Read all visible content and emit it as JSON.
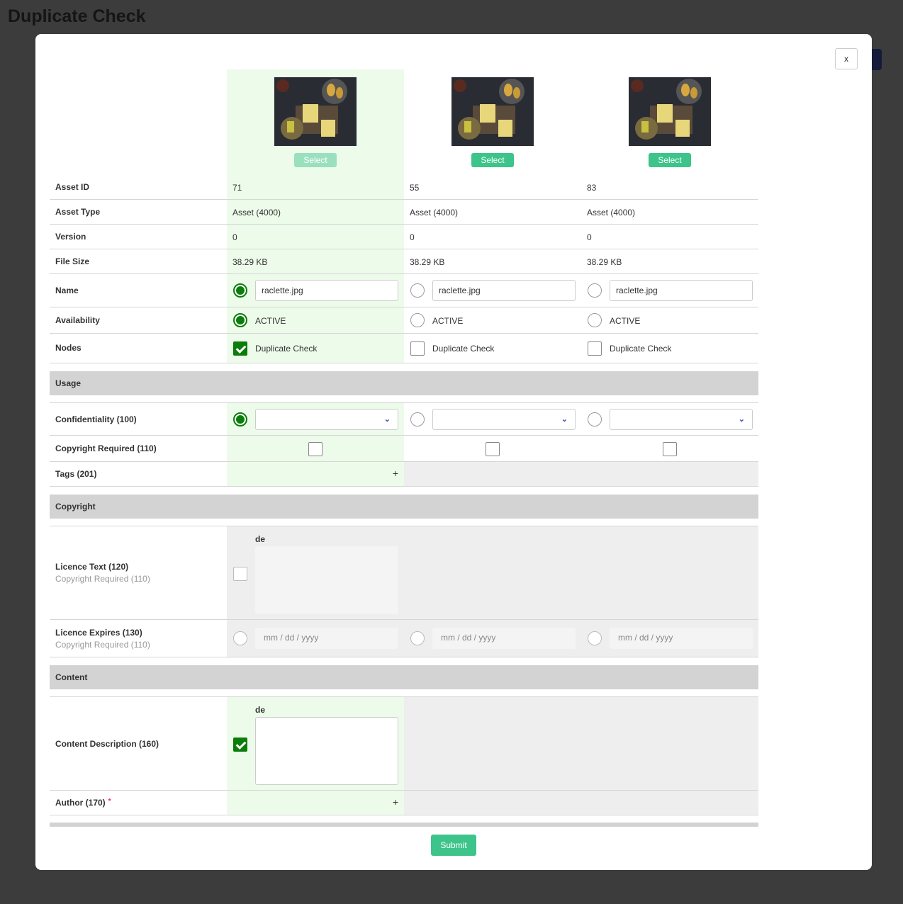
{
  "page": {
    "title": "Duplicate Check"
  },
  "modal": {
    "close_label": "x",
    "submit_label": "Submit"
  },
  "colors": {
    "accent": "#3cc48a",
    "selected_column": "#edfbea",
    "check_green": "#0a7d0a",
    "section_bg": "#d3d3d3"
  },
  "columns": [
    {
      "select_label": "Select",
      "selected": true,
      "image": "raclette-thumbnail",
      "asset_id": "71",
      "asset_type": "Asset (4000)",
      "version": "0",
      "file_size": "38.29 KB",
      "name": "raclette.jpg",
      "availability": "ACTIVE",
      "node": "Duplicate Check",
      "node_checked": true,
      "name_selected": true,
      "availability_selected": true,
      "confidentiality_selected": true
    },
    {
      "select_label": "Select",
      "selected": false,
      "image": "raclette-thumbnail",
      "asset_id": "55",
      "asset_type": "Asset (4000)",
      "version": "0",
      "file_size": "38.29 KB",
      "name": "raclette.jpg",
      "availability": "ACTIVE",
      "node": "Duplicate Check",
      "node_checked": false
    },
    {
      "select_label": "Select",
      "selected": false,
      "image": "raclette-thumbnail",
      "asset_id": "83",
      "asset_type": "Asset (4000)",
      "version": "0",
      "file_size": "38.29 KB",
      "name": "raclette.jpg",
      "availability": "ACTIVE",
      "node": "Duplicate Check",
      "node_checked": false
    }
  ],
  "labels": {
    "asset_id": "Asset ID",
    "asset_type": "Asset Type",
    "version": "Version",
    "file_size": "File Size",
    "name": "Name",
    "availability": "Availability",
    "nodes": "Nodes",
    "confidentiality": "Confidentiality (100)",
    "copyright_required": "Copyright Required (110)",
    "tags": "Tags (201)",
    "licence_text": "Licence Text (120)",
    "licence_text_sub": "Copyright Required (110)",
    "licence_expires": "Licence Expires (130)",
    "licence_expires_sub": "Copyright Required (110)",
    "content_description": "Content Description (160)",
    "author": "Author (170)",
    "author_required": "*"
  },
  "sections": {
    "usage": "Usage",
    "copyright": "Copyright",
    "content": "Content"
  },
  "fields": {
    "language": "de",
    "date_placeholder": "mm / dd / yyyy",
    "add_symbol": "+"
  }
}
